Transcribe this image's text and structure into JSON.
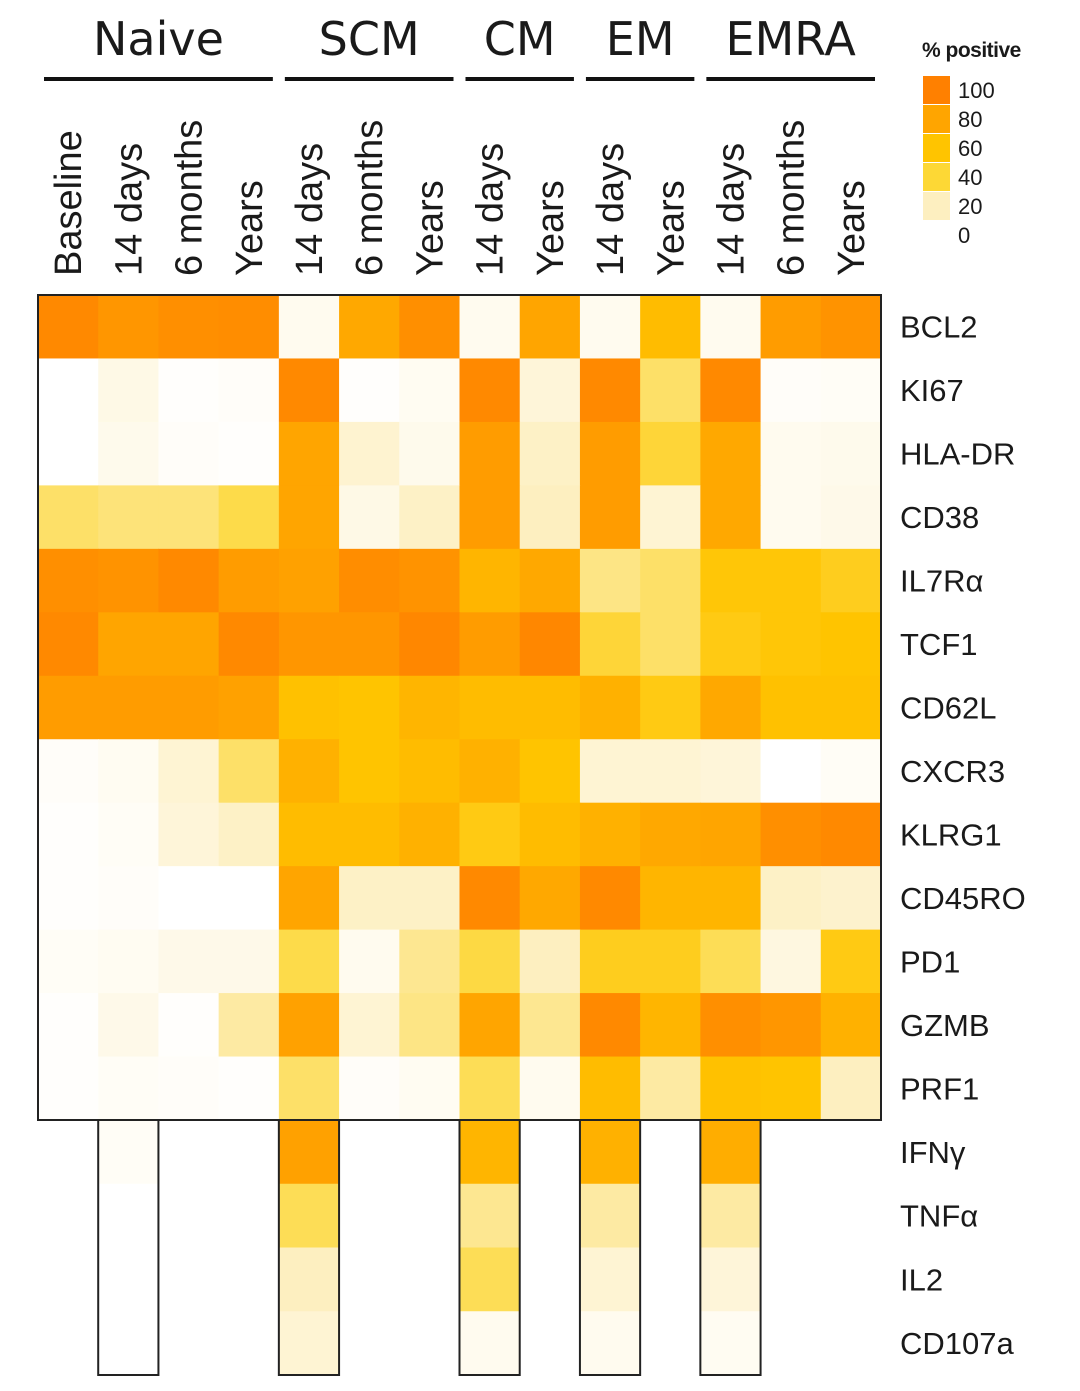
{
  "chart_data": {
    "type": "heatmap",
    "title": "",
    "legend": {
      "title": "% positive",
      "placement": "top-right",
      "ticks": [
        100,
        80,
        60,
        40,
        20,
        0
      ],
      "colors": [
        "#FF8000",
        "#FFA500",
        "#FFC400",
        "#FDD835",
        "#FDEFC0"
      ],
      "scale_stops": [
        {
          "value": 0,
          "color": "#FFFFFF"
        },
        {
          "value": 20,
          "color": "#FDEFC0"
        },
        {
          "value": 40,
          "color": "#FDDB4A"
        },
        {
          "value": 60,
          "color": "#FFC400"
        },
        {
          "value": 80,
          "color": "#FFA500"
        },
        {
          "value": 100,
          "color": "#FF8000"
        }
      ],
      "range": [
        0,
        100
      ]
    },
    "groups": [
      {
        "name": "Naive",
        "columns": [
          "Baseline",
          "14 days",
          "6 months",
          "Years"
        ]
      },
      {
        "name": "SCM",
        "columns": [
          "14 days",
          "6 months",
          "Years"
        ]
      },
      {
        "name": "CM",
        "columns": [
          "14 days",
          "Years"
        ]
      },
      {
        "name": "EM",
        "columns": [
          "14 days",
          "Years"
        ]
      },
      {
        "name": "EMRA",
        "columns": [
          "14 days",
          "6 months",
          "Years"
        ]
      }
    ],
    "columns": [
      "Baseline",
      "14 days",
      "6 months",
      "Years",
      "14 days",
      "6 months",
      "Years",
      "14 days",
      "Years",
      "14 days",
      "Years",
      "14 days",
      "6 months",
      "Years"
    ],
    "rows": [
      {
        "label": "BCL2",
        "values": [
          95,
          88,
          92,
          93,
          5,
          78,
          92,
          5,
          80,
          5,
          65,
          5,
          85,
          90
        ]
      },
      {
        "label": "KI67",
        "values": [
          0,
          8,
          1,
          2,
          95,
          1,
          4,
          95,
          12,
          95,
          35,
          95,
          2,
          3
        ]
      },
      {
        "label": "HLA-DR",
        "values": [
          0,
          6,
          2,
          1,
          80,
          15,
          6,
          85,
          18,
          85,
          45,
          78,
          5,
          6
        ]
      },
      {
        "label": "CD38",
        "values": [
          35,
          32,
          32,
          40,
          80,
          8,
          18,
          85,
          20,
          85,
          14,
          78,
          5,
          7
        ]
      },
      {
        "label": "IL7Rα",
        "values": [
          92,
          90,
          95,
          85,
          82,
          93,
          90,
          70,
          78,
          30,
          35,
          58,
          58,
          52
        ]
      },
      {
        "label": "TCF1",
        "values": [
          95,
          80,
          80,
          95,
          88,
          88,
          96,
          85,
          96,
          45,
          35,
          55,
          58,
          60
        ]
      },
      {
        "label": "CD62L",
        "values": [
          85,
          85,
          85,
          82,
          62,
          60,
          70,
          65,
          65,
          72,
          55,
          78,
          62,
          62
        ]
      },
      {
        "label": "CXCR3",
        "values": [
          2,
          4,
          14,
          35,
          72,
          60,
          65,
          72,
          60,
          14,
          14,
          12,
          0,
          3
        ]
      },
      {
        "label": "KLRG1",
        "values": [
          1,
          3,
          12,
          18,
          65,
          65,
          72,
          55,
          65,
          72,
          78,
          80,
          92,
          95
        ]
      },
      {
        "label": "CD45RO",
        "values": [
          1,
          2,
          0,
          0,
          80,
          18,
          18,
          95,
          78,
          95,
          70,
          70,
          18,
          16
        ]
      },
      {
        "label": "PD1",
        "values": [
          3,
          4,
          7,
          7,
          40,
          5,
          28,
          42,
          20,
          52,
          52,
          38,
          10,
          55
        ]
      },
      {
        "label": "GZMB",
        "values": [
          1,
          7,
          1,
          25,
          82,
          14,
          30,
          80,
          28,
          95,
          70,
          92,
          88,
          72
        ]
      },
      {
        "label": "PRF1",
        "values": [
          1,
          3,
          2,
          1,
          35,
          2,
          4,
          38,
          5,
          65,
          25,
          62,
          60,
          20
        ]
      }
    ],
    "function_rows": {
      "column_indices": [
        1,
        4,
        7,
        9,
        11
      ],
      "column_names": [
        "Naive 14 days",
        "SCM 14 days",
        "CM 14 days",
        "EM 14 days",
        "EMRA 14 days"
      ],
      "rows": [
        {
          "label": "IFNγ",
          "values": [
            3,
            82,
            70,
            72,
            75
          ]
        },
        {
          "label": "TNFα",
          "values": [
            0,
            38,
            28,
            25,
            25
          ]
        },
        {
          "label": "IL2",
          "values": [
            0,
            20,
            38,
            14,
            12
          ]
        },
        {
          "label": "CD107a",
          "values": [
            0,
            14,
            5,
            5,
            4
          ]
        }
      ]
    },
    "xlabel": "",
    "ylabel": ""
  }
}
